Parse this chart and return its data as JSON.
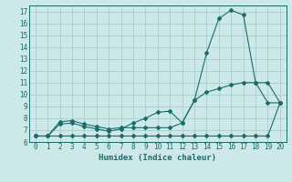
{
  "title": "",
  "xlabel": "Humidex (Indice chaleur)",
  "bg_color": "#cce8e8",
  "grid_color": "#aacccc",
  "line_color": "#1a6b6b",
  "xlim": [
    -0.5,
    20.5
  ],
  "ylim": [
    6,
    17.5
  ],
  "xticks": [
    0,
    1,
    2,
    3,
    4,
    5,
    6,
    7,
    8,
    9,
    10,
    11,
    12,
    13,
    14,
    15,
    16,
    17,
    18,
    19,
    20
  ],
  "yticks": [
    6,
    7,
    8,
    9,
    10,
    11,
    12,
    13,
    14,
    15,
    16,
    17
  ],
  "line1_x": [
    0,
    1,
    2,
    3,
    4,
    5,
    6,
    7,
    8,
    9,
    10,
    11,
    12,
    13,
    14,
    15,
    16,
    17,
    18,
    19,
    20
  ],
  "line1_y": [
    6.5,
    6.5,
    7.7,
    7.8,
    7.5,
    7.3,
    7.1,
    7.2,
    7.2,
    7.2,
    7.2,
    7.2,
    7.6,
    9.5,
    13.5,
    16.4,
    17.1,
    16.7,
    11.0,
    11.0,
    9.3
  ],
  "line2_x": [
    0,
    1,
    2,
    3,
    4,
    5,
    6,
    7,
    8,
    9,
    10,
    11,
    12,
    13,
    14,
    15,
    16,
    17,
    18,
    19,
    20
  ],
  "line2_y": [
    6.5,
    6.5,
    7.5,
    7.6,
    7.3,
    7.1,
    6.9,
    7.1,
    7.6,
    8.0,
    8.5,
    8.6,
    7.6,
    9.5,
    10.2,
    10.5,
    10.8,
    11.0,
    11.0,
    9.3,
    9.3
  ],
  "line3_x": [
    0,
    1,
    2,
    3,
    4,
    5,
    6,
    7,
    8,
    9,
    10,
    11,
    12,
    13,
    14,
    15,
    16,
    17,
    18,
    19,
    20
  ],
  "line3_y": [
    6.5,
    6.5,
    6.5,
    6.5,
    6.5,
    6.5,
    6.5,
    6.5,
    6.5,
    6.5,
    6.5,
    6.5,
    6.5,
    6.5,
    6.5,
    6.5,
    6.5,
    6.5,
    6.5,
    6.5,
    9.3
  ]
}
